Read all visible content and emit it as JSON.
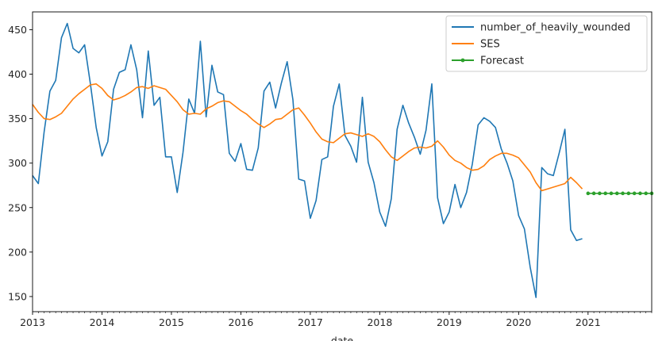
{
  "chart_data": {
    "type": "line",
    "xlabel": "date",
    "ylabel": "",
    "xlim": [
      "2013-01",
      "2021-12"
    ],
    "ylim": [
      133,
      470
    ],
    "grid": false,
    "legend_position": "top-right",
    "x_tick_labels": [
      "2013",
      "2014",
      "2015",
      "2016",
      "2017",
      "2018",
      "2019",
      "2020",
      "2021"
    ],
    "y_ticks": [
      150,
      200,
      250,
      300,
      350,
      400,
      450
    ],
    "series": [
      {
        "name": "number_of_heavily_wounded",
        "color": "#1f77b4",
        "start": "2013-01",
        "frequency": "monthly",
        "values": [
          286,
          277,
          335,
          381,
          393,
          441,
          457,
          429,
          424,
          433,
          389,
          340,
          308,
          324,
          383,
          402,
          405,
          433,
          405,
          351,
          426,
          365,
          374,
          307,
          307,
          267,
          312,
          372,
          356,
          437,
          352,
          410,
          380,
          377,
          311,
          302,
          322,
          293,
          292,
          317,
          381,
          391,
          362,
          390,
          414,
          371,
          282,
          280,
          238,
          258,
          304,
          307,
          364,
          389,
          331,
          319,
          301,
          374,
          301,
          278,
          245,
          229,
          260,
          338,
          365,
          345,
          329,
          310,
          337,
          389,
          261,
          232,
          245,
          276,
          250,
          267,
          299,
          343,
          351,
          347,
          340,
          316,
          300,
          280,
          241,
          226,
          183,
          149,
          295,
          288,
          286,
          311,
          338,
          225,
          213,
          215
        ]
      },
      {
        "name": "SES",
        "color": "#ff7f0e",
        "start": "2013-01",
        "frequency": "monthly",
        "values": [
          366,
          357,
          350,
          349,
          352,
          356,
          364,
          372,
          378,
          383,
          388,
          389,
          384,
          376,
          371,
          373,
          376,
          380,
          385,
          386,
          384,
          387,
          385,
          383,
          376,
          369,
          360,
          355,
          356,
          355,
          361,
          364,
          368,
          370,
          369,
          364,
          359,
          355,
          349,
          344,
          340,
          344,
          349,
          350,
          355,
          360,
          362,
          354,
          345,
          335,
          327,
          324,
          323,
          328,
          333,
          334,
          332,
          330,
          333,
          330,
          324,
          315,
          307,
          303,
          308,
          313,
          317,
          318,
          317,
          319,
          325,
          318,
          309,
          303,
          300,
          295,
          292,
          293,
          297,
          304,
          308,
          311,
          311,
          309,
          306,
          298,
          290,
          278,
          269,
          271,
          273,
          275,
          277,
          284,
          278,
          271
        ]
      },
      {
        "name": "Forecast",
        "color": "#2ca02c",
        "start": "2021-01",
        "frequency": "monthly",
        "values": [
          266,
          266,
          266,
          266,
          266,
          266,
          266,
          266,
          266,
          266,
          266,
          266
        ]
      }
    ]
  }
}
